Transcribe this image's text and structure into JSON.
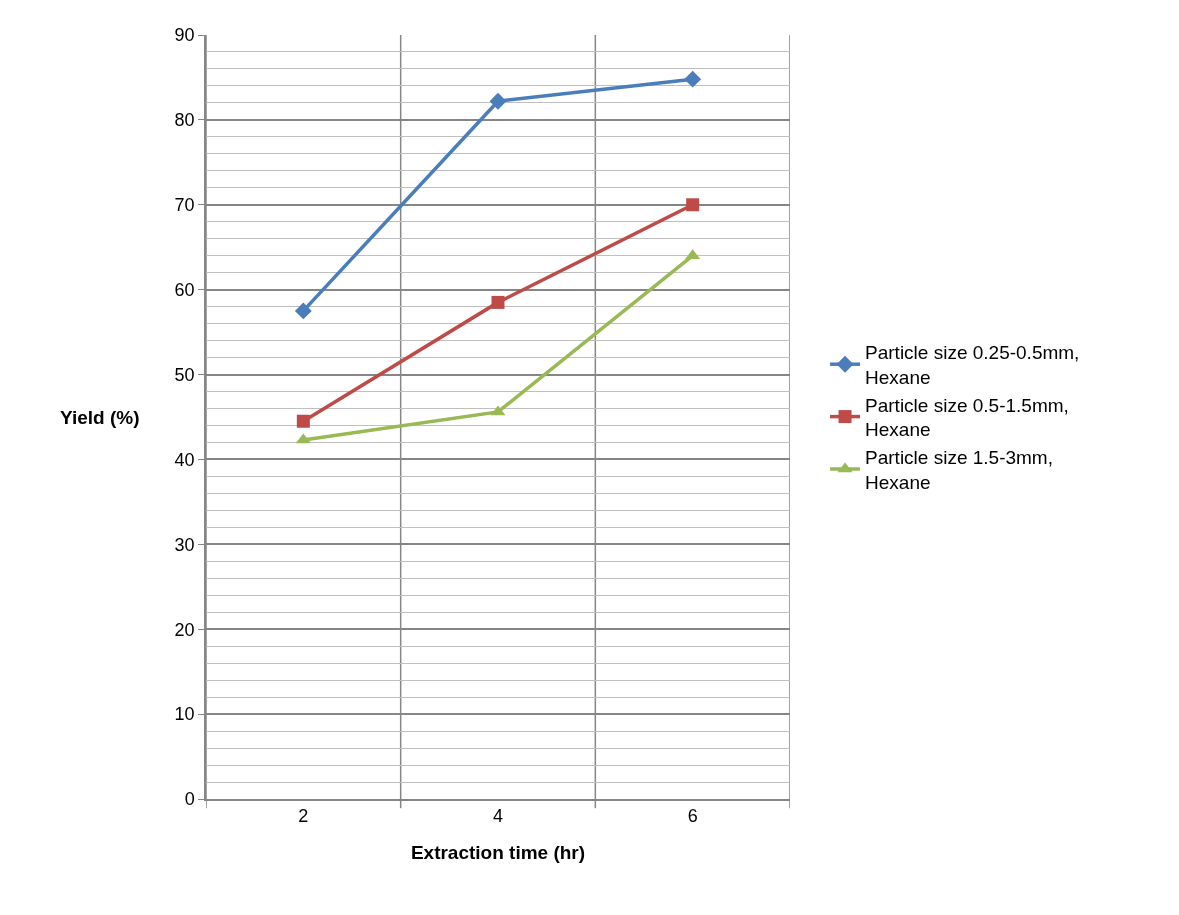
{
  "chart_data": {
    "type": "line",
    "xlabel": "Extraction time (hr)",
    "ylabel": "Yield (%)",
    "categories": [
      "2",
      "4",
      "6"
    ],
    "ylim": [
      0,
      90
    ],
    "yticks": [
      0,
      10,
      20,
      30,
      40,
      50,
      60,
      70,
      80,
      90
    ],
    "grid": true,
    "legend": "right",
    "series": [
      {
        "name": "Particle size 0.25-0.5mm, Hexane",
        "color": "#4a7ebb",
        "marker": "diamond",
        "values": [
          57.5,
          82.2,
          84.8
        ]
      },
      {
        "name": "Particle size 0.5-1.5mm, Hexane",
        "color": "#be4b48",
        "marker": "square",
        "values": [
          44.5,
          58.5,
          70.0
        ]
      },
      {
        "name": "Particle size 1.5-3mm, Hexane",
        "color": "#98b954",
        "marker": "triangle",
        "values": [
          42.3,
          45.6,
          64.0
        ]
      }
    ]
  }
}
